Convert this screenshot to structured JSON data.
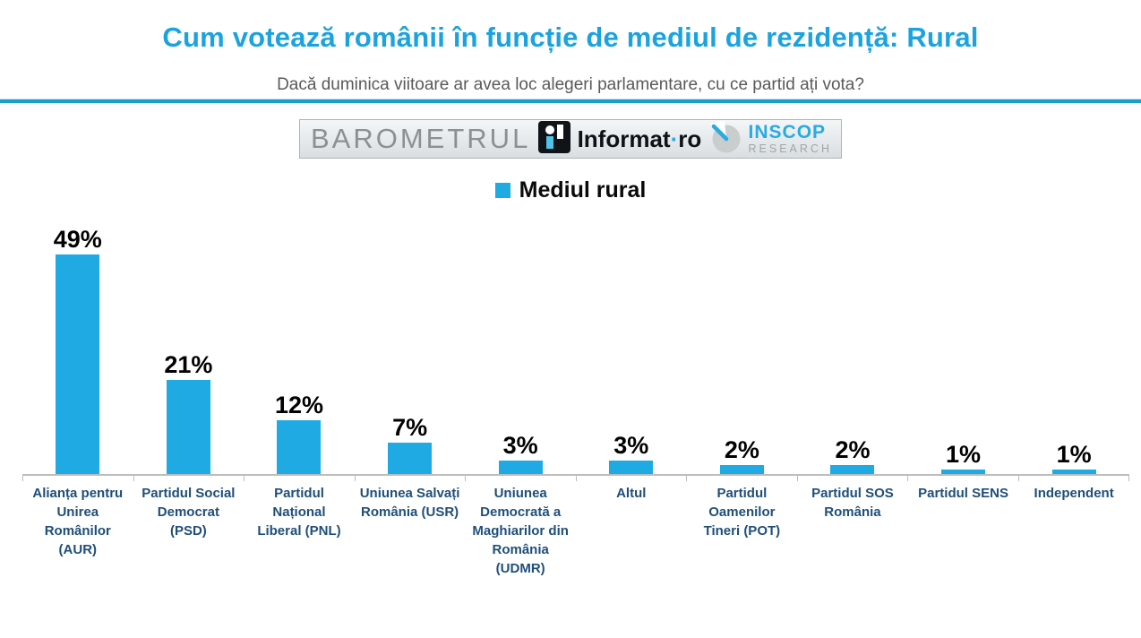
{
  "header": {
    "title": "Cum votează românii în funcție de mediul de rezidență: Rural",
    "subtitle": "Dacă duminica viitoare ar avea loc alegeri parlamentare, cu ce partid ați vota?"
  },
  "branding": {
    "barometrul_text": "BAROMETRUL",
    "informat_name": "Informat",
    "informat_dot": "·",
    "informat_tld": "ro",
    "inscop_name": "INSCOP",
    "inscop_sub": "RESEARCH"
  },
  "legend": {
    "label": "Mediul rural",
    "swatch_color": "#1FAAE3"
  },
  "chart_data": {
    "type": "bar",
    "series_name": "Mediul rural",
    "categories": [
      "Alianța pentru Unirea Românilor (AUR)",
      "Partidul Social Democrat (PSD)",
      "Partidul Național Liberal (PNL)",
      "Uniunea Salvați România (USR)",
      "Uniunea Democrată a Maghiarilor din România (UDMR)",
      "Altul",
      "Partidul Oamenilor Tineri (POT)",
      "Partidul SOS România",
      "Partidul SENS",
      "Independent"
    ],
    "values": [
      49,
      21,
      12,
      7,
      3,
      3,
      2,
      2,
      1,
      1
    ],
    "value_labels": [
      "49%",
      "21%",
      "12%",
      "7%",
      "3%",
      "3%",
      "2%",
      "2%",
      "1%",
      "1%"
    ],
    "unit": "%",
    "ylim": [
      0,
      50
    ],
    "grid": false,
    "legend_position": "top-center",
    "bar_color": "#1FAAE3",
    "value_label_color": "#000000",
    "category_label_color": "#1F4E79"
  },
  "colors": {
    "title": "#1BA3DF",
    "subtitle": "#595959",
    "divider": "#1B9EC7",
    "axis": "#BDBDBD",
    "category": "#1F4E79",
    "barometrul_gray": "#8C9093",
    "inscop_cyan": "#29ABE2",
    "research_gray": "#9FA5A8"
  }
}
